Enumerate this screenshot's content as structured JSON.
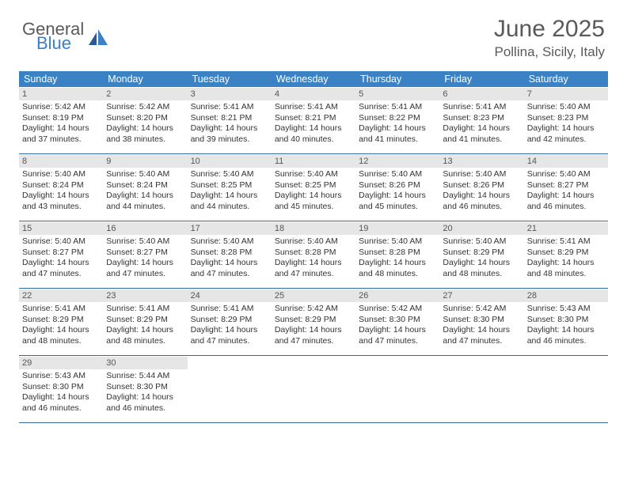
{
  "logo": {
    "word1": "General",
    "word2": "Blue"
  },
  "title": "June 2025",
  "location": "Pollina, Sicily, Italy",
  "colors": {
    "header_bg": "#3b82c4",
    "header_text": "#ffffff",
    "daynum_bg": "#e6e6e6",
    "week_border": "#2f6aa0",
    "text": "#333333",
    "title_color": "#5a5a5a",
    "logo_blue": "#3b7fc4"
  },
  "dow": [
    "Sunday",
    "Monday",
    "Tuesday",
    "Wednesday",
    "Thursday",
    "Friday",
    "Saturday"
  ],
  "weeks": [
    [
      {
        "n": "1",
        "sr": "5:42 AM",
        "ss": "8:19 PM",
        "dl": "14 hours and 37 minutes."
      },
      {
        "n": "2",
        "sr": "5:42 AM",
        "ss": "8:20 PM",
        "dl": "14 hours and 38 minutes."
      },
      {
        "n": "3",
        "sr": "5:41 AM",
        "ss": "8:21 PM",
        "dl": "14 hours and 39 minutes."
      },
      {
        "n": "4",
        "sr": "5:41 AM",
        "ss": "8:21 PM",
        "dl": "14 hours and 40 minutes."
      },
      {
        "n": "5",
        "sr": "5:41 AM",
        "ss": "8:22 PM",
        "dl": "14 hours and 41 minutes."
      },
      {
        "n": "6",
        "sr": "5:41 AM",
        "ss": "8:23 PM",
        "dl": "14 hours and 41 minutes."
      },
      {
        "n": "7",
        "sr": "5:40 AM",
        "ss": "8:23 PM",
        "dl": "14 hours and 42 minutes."
      }
    ],
    [
      {
        "n": "8",
        "sr": "5:40 AM",
        "ss": "8:24 PM",
        "dl": "14 hours and 43 minutes."
      },
      {
        "n": "9",
        "sr": "5:40 AM",
        "ss": "8:24 PM",
        "dl": "14 hours and 44 minutes."
      },
      {
        "n": "10",
        "sr": "5:40 AM",
        "ss": "8:25 PM",
        "dl": "14 hours and 44 minutes."
      },
      {
        "n": "11",
        "sr": "5:40 AM",
        "ss": "8:25 PM",
        "dl": "14 hours and 45 minutes."
      },
      {
        "n": "12",
        "sr": "5:40 AM",
        "ss": "8:26 PM",
        "dl": "14 hours and 45 minutes."
      },
      {
        "n": "13",
        "sr": "5:40 AM",
        "ss": "8:26 PM",
        "dl": "14 hours and 46 minutes."
      },
      {
        "n": "14",
        "sr": "5:40 AM",
        "ss": "8:27 PM",
        "dl": "14 hours and 46 minutes."
      }
    ],
    [
      {
        "n": "15",
        "sr": "5:40 AM",
        "ss": "8:27 PM",
        "dl": "14 hours and 47 minutes."
      },
      {
        "n": "16",
        "sr": "5:40 AM",
        "ss": "8:27 PM",
        "dl": "14 hours and 47 minutes."
      },
      {
        "n": "17",
        "sr": "5:40 AM",
        "ss": "8:28 PM",
        "dl": "14 hours and 47 minutes."
      },
      {
        "n": "18",
        "sr": "5:40 AM",
        "ss": "8:28 PM",
        "dl": "14 hours and 47 minutes."
      },
      {
        "n": "19",
        "sr": "5:40 AM",
        "ss": "8:28 PM",
        "dl": "14 hours and 48 minutes."
      },
      {
        "n": "20",
        "sr": "5:40 AM",
        "ss": "8:29 PM",
        "dl": "14 hours and 48 minutes."
      },
      {
        "n": "21",
        "sr": "5:41 AM",
        "ss": "8:29 PM",
        "dl": "14 hours and 48 minutes."
      }
    ],
    [
      {
        "n": "22",
        "sr": "5:41 AM",
        "ss": "8:29 PM",
        "dl": "14 hours and 48 minutes."
      },
      {
        "n": "23",
        "sr": "5:41 AM",
        "ss": "8:29 PM",
        "dl": "14 hours and 48 minutes."
      },
      {
        "n": "24",
        "sr": "5:41 AM",
        "ss": "8:29 PM",
        "dl": "14 hours and 47 minutes."
      },
      {
        "n": "25",
        "sr": "5:42 AM",
        "ss": "8:29 PM",
        "dl": "14 hours and 47 minutes."
      },
      {
        "n": "26",
        "sr": "5:42 AM",
        "ss": "8:30 PM",
        "dl": "14 hours and 47 minutes."
      },
      {
        "n": "27",
        "sr": "5:42 AM",
        "ss": "8:30 PM",
        "dl": "14 hours and 47 minutes."
      },
      {
        "n": "28",
        "sr": "5:43 AM",
        "ss": "8:30 PM",
        "dl": "14 hours and 46 minutes."
      }
    ],
    [
      {
        "n": "29",
        "sr": "5:43 AM",
        "ss": "8:30 PM",
        "dl": "14 hours and 46 minutes."
      },
      {
        "n": "30",
        "sr": "5:44 AM",
        "ss": "8:30 PM",
        "dl": "14 hours and 46 minutes."
      },
      null,
      null,
      null,
      null,
      null
    ]
  ],
  "labels": {
    "sunrise": "Sunrise:",
    "sunset": "Sunset:",
    "daylight": "Daylight:"
  }
}
